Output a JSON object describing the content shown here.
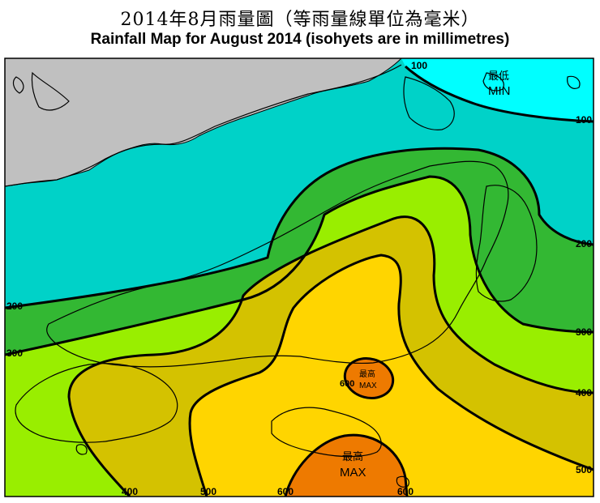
{
  "title_zh": "2014年8月雨量圖（等雨量線單位為毫米）",
  "title_en": "Rainfall Map for August 2014 (isohyets are in millimetres)",
  "colors": {
    "land_outside": "#c0c0c0",
    "band_lt100": "#00ffff",
    "band_100_200": "#00d2c8",
    "band_200_300": "#33b833",
    "band_300_400": "#99ee00",
    "band_400_500": "#d4c200",
    "band_500_600": "#ffd500",
    "band_gt600": "#ee7a00",
    "isohyet_line": "#000000",
    "coast_line": "#000000"
  },
  "isohyet_labels": {
    "l100_top": "100",
    "l100_right": "100",
    "l200_left": "200",
    "l200_right": "200",
    "l300_left": "300",
    "l300_right": "300",
    "l400_right": "400",
    "l400_bottom": "400",
    "l500_right": "500",
    "l500_bottom": "500",
    "l600_bottom_left": "600",
    "l600_bottom_right": "600",
    "l600_centre": "600"
  },
  "annotations": {
    "min_zh": "最低",
    "min_en": "MIN",
    "max_centre_zh": "最高",
    "max_centre_en": "MAX",
    "max_bottom_zh": "最高",
    "max_bottom_en": "MAX"
  }
}
